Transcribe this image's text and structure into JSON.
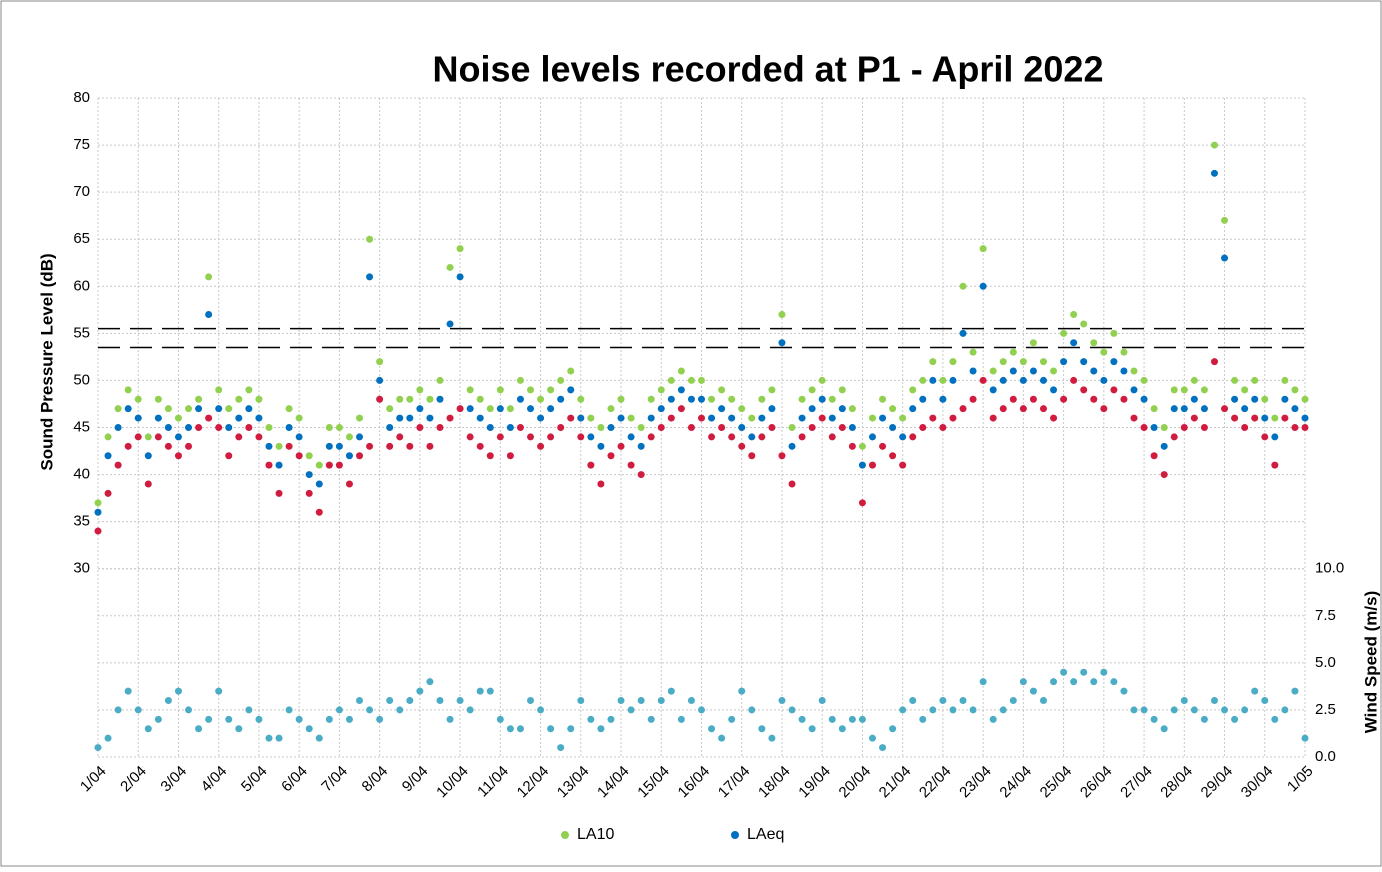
{
  "chart_data": {
    "type": "scatter",
    "title": "Noise levels recorded at P1 - April 2022",
    "y_label": "Sound Pressure Level (dB)",
    "y2_label": "Wind Speed (m/s)",
    "xlim": [
      1,
      31
    ],
    "xticks": [
      {
        "value": 1,
        "label": "1/04"
      },
      {
        "value": 2,
        "label": "2/04"
      },
      {
        "value": 3,
        "label": "3/04"
      },
      {
        "value": 4,
        "label": "4/04"
      },
      {
        "value": 5,
        "label": "5/04"
      },
      {
        "value": 6,
        "label": "6/04"
      },
      {
        "value": 7,
        "label": "7/04"
      },
      {
        "value": 8,
        "label": "8/04"
      },
      {
        "value": 9,
        "label": "9/04"
      },
      {
        "value": 10,
        "label": "10/04"
      },
      {
        "value": 11,
        "label": "11/04"
      },
      {
        "value": 12,
        "label": "12/04"
      },
      {
        "value": 13,
        "label": "13/04"
      },
      {
        "value": 14,
        "label": "14/04"
      },
      {
        "value": 15,
        "label": "15/04"
      },
      {
        "value": 16,
        "label": "16/04"
      },
      {
        "value": 17,
        "label": "17/04"
      },
      {
        "value": 18,
        "label": "18/04"
      },
      {
        "value": 19,
        "label": "19/04"
      },
      {
        "value": 20,
        "label": "20/04"
      },
      {
        "value": 21,
        "label": "21/04"
      },
      {
        "value": 22,
        "label": "22/04"
      },
      {
        "value": 23,
        "label": "23/04"
      },
      {
        "value": 24,
        "label": "24/04"
      },
      {
        "value": 25,
        "label": "25/04"
      },
      {
        "value": 26,
        "label": "26/04"
      },
      {
        "value": 27,
        "label": "27/04"
      },
      {
        "value": 28,
        "label": "28/04"
      },
      {
        "value": 29,
        "label": "29/04"
      },
      {
        "value": 30,
        "label": "30/04"
      },
      {
        "value": 31,
        "label": "1/05"
      }
    ],
    "ylim": [
      10,
      80
    ],
    "yticks": [
      30,
      35,
      40,
      45,
      50,
      55,
      60,
      65,
      70,
      75,
      80
    ],
    "y2lim": [
      0,
      35
    ],
    "y2ticks": [
      {
        "value": 0,
        "label": "0.0"
      },
      2.5,
      {
        "value": 5,
        "label": "5.0"
      },
      7.5,
      {
        "value": 10,
        "label": "10.0"
      }
    ],
    "grid": true,
    "reference_lines": [
      55.5,
      53.5
    ],
    "x": [
      1,
      1.25,
      1.5,
      1.75,
      2,
      2.25,
      2.5,
      2.75,
      3,
      3.25,
      3.5,
      3.75,
      4,
      4.25,
      4.5,
      4.75,
      5,
      5.25,
      5.5,
      5.75,
      6,
      6.25,
      6.5,
      6.75,
      7,
      7.25,
      7.5,
      7.75,
      8,
      8.25,
      8.5,
      8.75,
      9,
      9.25,
      9.5,
      9.75,
      10,
      10.25,
      10.5,
      10.75,
      11,
      11.25,
      11.5,
      11.75,
      12,
      12.25,
      12.5,
      12.75,
      13,
      13.25,
      13.5,
      13.75,
      14,
      14.25,
      14.5,
      14.75,
      15,
      15.25,
      15.5,
      15.75,
      16,
      16.25,
      16.5,
      16.75,
      17,
      17.25,
      17.5,
      17.75,
      18,
      18.25,
      18.5,
      18.75,
      19,
      19.25,
      19.5,
      19.75,
      20,
      20.25,
      20.5,
      20.75,
      21,
      21.25,
      21.5,
      21.75,
      22,
      22.25,
      22.5,
      22.75,
      23,
      23.25,
      23.5,
      23.75,
      24,
      24.25,
      24.5,
      24.75,
      25,
      25.25,
      25.5,
      25.75,
      26,
      26.25,
      26.5,
      26.75,
      27,
      27.25,
      27.5,
      27.75,
      28,
      28.25,
      28.5,
      28.75,
      29,
      29.25,
      29.5,
      29.75,
      30,
      30.25,
      30.5,
      30.75,
      31
    ],
    "series": [
      {
        "name": "LA10",
        "color": "#92d050",
        "values": [
          37,
          44,
          47,
          49,
          48,
          44,
          48,
          47,
          46,
          47,
          48,
          61,
          49,
          47,
          48,
          49,
          48,
          45,
          43,
          47,
          46,
          42,
          41,
          45,
          45,
          44,
          46,
          65,
          52,
          47,
          48,
          48,
          49,
          48,
          50,
          62,
          64,
          49,
          48,
          47,
          49,
          47,
          50,
          49,
          48,
          49,
          50,
          51,
          48,
          46,
          45,
          47,
          48,
          46,
          45,
          48,
          49,
          50,
          51,
          50,
          50,
          48,
          49,
          48,
          47,
          46,
          48,
          49,
          57,
          45,
          48,
          49,
          50,
          48,
          49,
          47,
          43,
          46,
          48,
          47,
          46,
          49,
          50,
          52,
          50,
          52,
          60,
          53,
          64,
          51,
          52,
          53,
          52,
          54,
          52,
          51,
          55,
          57,
          56,
          54,
          53,
          55,
          53,
          51,
          50,
          47,
          45,
          49,
          49,
          50,
          49,
          75,
          67,
          50,
          49,
          50,
          48,
          46,
          50,
          49,
          48
        ]
      },
      {
        "name": "LAeq",
        "color": "#0070c0",
        "values": [
          36,
          42,
          45,
          47,
          46,
          42,
          46,
          45,
          44,
          45,
          47,
          57,
          47,
          45,
          46,
          47,
          46,
          43,
          41,
          45,
          44,
          40,
          39,
          43,
          43,
          42,
          44,
          61,
          50,
          45,
          46,
          46,
          47,
          46,
          48,
          56,
          61,
          47,
          46,
          45,
          47,
          45,
          48,
          47,
          46,
          47,
          48,
          49,
          46,
          44,
          43,
          45,
          46,
          44,
          43,
          46,
          47,
          48,
          49,
          48,
          48,
          46,
          47,
          46,
          45,
          44,
          46,
          47,
          54,
          43,
          46,
          47,
          48,
          46,
          47,
          45,
          41,
          44,
          46,
          45,
          44,
          47,
          48,
          50,
          48,
          50,
          55,
          51,
          60,
          49,
          50,
          51,
          50,
          51,
          50,
          49,
          52,
          54,
          52,
          51,
          50,
          52,
          51,
          49,
          48,
          45,
          43,
          47,
          47,
          48,
          47,
          72,
          63,
          48,
          47,
          48,
          46,
          44,
          48,
          47,
          46
        ]
      },
      {
        "color": "#d01c3f",
        "values": [
          34,
          38,
          41,
          43,
          44,
          39,
          44,
          43,
          42,
          43,
          45,
          46,
          45,
          42,
          44,
          45,
          44,
          41,
          38,
          43,
          42,
          38,
          36,
          41,
          41,
          39,
          42,
          43,
          48,
          43,
          44,
          43,
          45,
          43,
          45,
          46,
          47,
          44,
          43,
          42,
          44,
          42,
          45,
          44,
          43,
          44,
          45,
          46,
          44,
          41,
          39,
          42,
          43,
          41,
          40,
          44,
          45,
          46,
          47,
          45,
          46,
          44,
          45,
          44,
          43,
          42,
          44,
          45,
          42,
          39,
          44,
          45,
          46,
          44,
          45,
          43,
          37,
          41,
          43,
          42,
          41,
          44,
          45,
          46,
          45,
          46,
          47,
          48,
          50,
          46,
          47,
          48,
          47,
          48,
          47,
          46,
          48,
          50,
          49,
          48,
          47,
          49,
          48,
          46,
          45,
          42,
          40,
          44,
          45,
          46,
          45,
          52,
          47,
          46,
          45,
          46,
          44,
          41,
          46,
          45,
          45
        ]
      },
      {
        "color": "#4bacc6",
        "axis": "y2",
        "values": [
          0.5,
          1,
          2.5,
          3.5,
          2.5,
          1.5,
          2,
          3,
          3.5,
          2.5,
          1.5,
          2,
          3.5,
          2,
          1.5,
          2.5,
          2,
          1,
          1,
          2.5,
          2,
          1.5,
          1,
          2,
          2.5,
          2,
          3,
          2.5,
          2,
          3,
          2.5,
          3,
          3.5,
          4,
          3,
          2,
          3,
          2.5,
          3.5,
          3.5,
          2,
          1.5,
          1.5,
          3,
          2.5,
          1.5,
          0.5,
          1.5,
          3,
          2,
          1.5,
          2,
          3,
          2.5,
          3,
          2,
          3,
          3.5,
          2,
          3,
          2.5,
          1.5,
          1,
          2,
          3.5,
          2.5,
          1.5,
          1,
          3,
          2.5,
          2,
          1.5,
          3,
          2,
          1.5,
          2,
          2,
          1,
          0.5,
          1.5,
          2.5,
          3,
          2,
          2.5,
          3,
          2.5,
          3,
          2.5,
          4,
          2,
          2.5,
          3,
          4,
          3.5,
          3,
          4,
          4.5,
          4,
          4.5,
          4,
          4.5,
          4,
          3.5,
          2.5,
          2.5,
          2,
          1.5,
          2.5,
          3,
          2.5,
          2,
          3,
          2.5,
          2,
          2.5,
          3.5,
          3,
          2,
          2.5,
          3.5,
          1
        ]
      }
    ]
  }
}
